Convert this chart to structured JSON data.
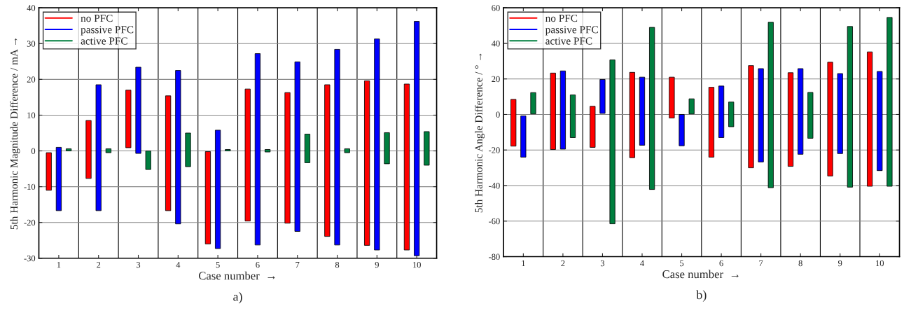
{
  "chart_data": [
    {
      "type": "bar",
      "xlabel": "Case number  →",
      "ylabel": "5th Harmonic Magnitude Difference / mA →",
      "annotations": [
        "a)"
      ],
      "categories": [
        "1",
        "2",
        "3",
        "4",
        "5",
        "6",
        "7",
        "8",
        "9",
        "10"
      ],
      "series": [
        {
          "name": "no PFC",
          "color": "#ff0000",
          "base": [
            -11,
            -7.7,
            0.9,
            -16.7,
            -26,
            -19.6,
            -20.2,
            -23.9,
            -26.4,
            -27.7
          ],
          "values": [
            10.5,
            16.2,
            16.1,
            32.1,
            25.8,
            36.9,
            36.5,
            42.4,
            46,
            46.4
          ]
        },
        {
          "name": "passive PFC",
          "color": "#0000ff",
          "base": [
            -16.7,
            -16.7,
            -0.7,
            -20.4,
            -27.3,
            -26.3,
            -22.5,
            -26.3,
            -27.7,
            -29.3
          ],
          "values": [
            17.7,
            35.2,
            24.1,
            42.9,
            33.1,
            53.5,
            47.4,
            54.7,
            59,
            65.5
          ]
        },
        {
          "name": "active PFC",
          "color": "#007f3f",
          "base": [
            0,
            -0.5,
            -5.2,
            -4.4,
            0,
            -0.3,
            -3.3,
            -0.5,
            -3.6,
            -4
          ],
          "values": [
            0.6,
            1.1,
            5.2,
            9.4,
            0.4,
            0.7,
            8,
            1.1,
            8.7,
            9.4
          ]
        }
      ],
      "ylim": [
        -30,
        40
      ],
      "yticks": [
        -30,
        -20,
        -10,
        0,
        10,
        20,
        30,
        40
      ],
      "grid": true,
      "legend": "top left"
    },
    {
      "type": "bar",
      "xlabel": "Case number  →",
      "ylabel": "5th Harmonic Angle Difference / ° →",
      "annotations": [
        "b)"
      ],
      "categories": [
        "1",
        "2",
        "3",
        "4",
        "5",
        "6",
        "7",
        "8",
        "9",
        "10"
      ],
      "series": [
        {
          "name": "no PFC",
          "color": "#ff0000",
          "base": [
            -17.8,
            -19.7,
            -18.5,
            -24.3,
            -2,
            -24,
            -30,
            -29.2,
            -34.6,
            -40.4
          ],
          "values": [
            26.3,
            43,
            23.1,
            48,
            23,
            39.3,
            57.5,
            52.7,
            64,
            75.6
          ]
        },
        {
          "name": "passive PFC",
          "color": "#0000ff",
          "base": [
            -24,
            -19.5,
            0.6,
            -17.3,
            -17.6,
            -13,
            -26.7,
            -22.4,
            -22,
            -31.6
          ],
          "values": [
            23.2,
            44,
            19.1,
            38.3,
            17.6,
            29,
            52.5,
            48.2,
            45,
            55.8
          ]
        },
        {
          "name": "active PFC",
          "color": "#007f3f",
          "base": [
            0.3,
            -13,
            -61.5,
            -42.2,
            0.3,
            -6.9,
            -41.2,
            -13.4,
            -40.9,
            -40.4
          ],
          "values": [
            12,
            24,
            92.2,
            91.2,
            8.5,
            13.9,
            93.1,
            25.8,
            90.4,
            95
          ]
        }
      ],
      "ylim": [
        -80,
        60
      ],
      "yticks": [
        -80,
        -60,
        -40,
        -20,
        0,
        20,
        40,
        60
      ],
      "grid": true,
      "legend": "top left"
    }
  ]
}
